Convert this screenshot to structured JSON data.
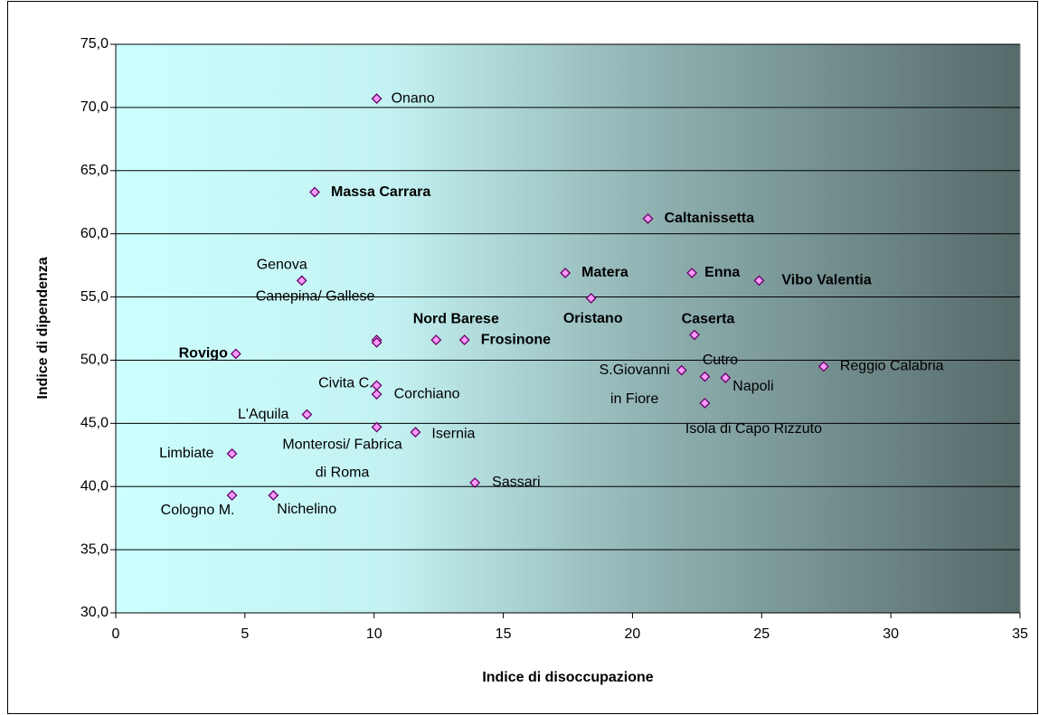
{
  "chart_data": {
    "type": "scatter",
    "x_label": "Indice di disoccupazione",
    "y_label": "Indice di dipendenza",
    "xlim": [
      0,
      35
    ],
    "ylim": [
      30,
      75
    ],
    "xticks": [
      0,
      5,
      10,
      15,
      20,
      25,
      30,
      35
    ],
    "yticks": [
      {
        "value": 30,
        "label": "30,0"
      },
      {
        "value": 35,
        "label": "35,0"
      },
      {
        "value": 40,
        "label": "40,0"
      },
      {
        "value": 45,
        "label": "45,0"
      },
      {
        "value": 50,
        "label": "50,0"
      },
      {
        "value": 55,
        "label": "55,0"
      },
      {
        "value": 60,
        "label": "60,0"
      },
      {
        "value": 65,
        "label": "65,0"
      },
      {
        "value": 70,
        "label": "70,0"
      },
      {
        "value": 75,
        "label": "75,0"
      }
    ],
    "grid": true,
    "marker_color": "#ff99ff",
    "marker_edge_color": "#660066",
    "x": [
      10.1,
      7.7,
      20.6,
      7.2,
      17.4,
      22.3,
      24.9,
      18.4,
      10.1,
      10.1,
      12.4,
      13.5,
      22.4,
      4.65,
      21.9,
      22.8,
      23.6,
      22.8,
      27.4,
      10.1,
      10.1,
      7.4,
      10.1,
      11.6,
      4.5,
      13.9,
      4.5,
      6.1
    ],
    "values": [
      70.7,
      63.3,
      61.2,
      56.3,
      56.9,
      56.9,
      56.3,
      54.9,
      51.6,
      51.4,
      51.6,
      51.6,
      52.0,
      50.5,
      49.2,
      48.7,
      48.6,
      46.6,
      49.5,
      48.0,
      47.3,
      45.7,
      44.7,
      44.3,
      42.6,
      40.3,
      39.3,
      39.3
    ],
    "point_labels": [
      [
        "Onano"
      ],
      [
        "Massa Carrara"
      ],
      [
        "Caltanissetta"
      ],
      [
        "Genova"
      ],
      [
        "Matera"
      ],
      [
        "Enna"
      ],
      [
        "Vibo Valentia"
      ],
      [
        "Oristano"
      ],
      [
        "Canepina/ Gallese"
      ],
      null,
      [
        "Nord Barese"
      ],
      [
        "Frosinone"
      ],
      [
        "Caserta"
      ],
      [
        "Rovigo"
      ],
      [
        "S.Giovanni",
        "in Fiore"
      ],
      [
        "Cutro"
      ],
      [
        "Napoli"
      ],
      [
        "Isola di Capo Rizzuto"
      ],
      [
        "Reggio Calabria"
      ],
      [
        "Civita C."
      ],
      [
        "Corchiano"
      ],
      [
        "L'Aquila"
      ],
      [
        "Monterosi/ Fabrica",
        "di Roma"
      ],
      [
        "Isernia"
      ],
      [
        "Limbiate"
      ],
      [
        "Sassari"
      ],
      [
        "Cologno M."
      ],
      [
        "Nichelino"
      ]
    ],
    "label_bold": [
      false,
      true,
      true,
      false,
      true,
      true,
      true,
      true,
      false,
      false,
      true,
      true,
      true,
      true,
      false,
      false,
      false,
      false,
      false,
      false,
      false,
      false,
      false,
      false,
      false,
      false,
      false,
      false
    ]
  }
}
